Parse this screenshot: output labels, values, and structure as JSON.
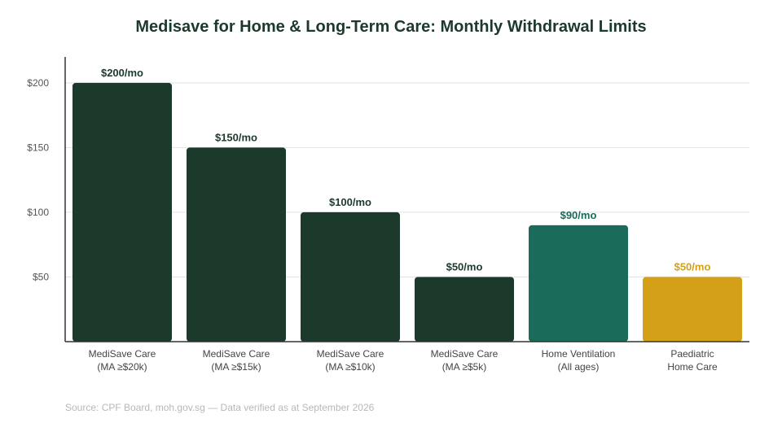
{
  "chart_data": {
    "type": "bar",
    "title": "Medisave for Home & Long-Term Care: Monthly Withdrawal Limits",
    "categories": [
      [
        "MediSave Care",
        "(MA ≥$20k)"
      ],
      [
        "MediSave Care",
        "(MA ≥$15k)"
      ],
      [
        "MediSave Care",
        "(MA ≥$10k)"
      ],
      [
        "MediSave Care",
        "(MA ≥$5k)"
      ],
      [
        "Home Ventilation",
        "(All ages)"
      ],
      [
        "Paediatric",
        "Home Care"
      ]
    ],
    "values": [
      200,
      150,
      100,
      50,
      90,
      50
    ],
    "data_labels": [
      "$200/mo",
      "$150/mo",
      "$100/mo",
      "$50/mo",
      "$90/mo",
      "$50/mo"
    ],
    "bar_colors": [
      "#1b3a2b",
      "#1b3a2b",
      "#1b3a2b",
      "#1b3a2b",
      "#1a6b5a",
      "#d4a017"
    ],
    "label_colors": [
      "#1b3a2b",
      "#1b3a2b",
      "#1b3a2b",
      "#1b3a2b",
      "#1a6b5a",
      "#d4a017"
    ],
    "yticks": [
      50,
      100,
      150,
      200
    ],
    "ytick_labels": [
      "$50",
      "$100",
      "$150",
      "$200"
    ],
    "ylim": [
      0,
      220
    ],
    "grid": true,
    "xlabel": "",
    "ylabel": ""
  },
  "source_note": "Source: CPF Board, moh.gov.sg — Data verified as at September 2026"
}
